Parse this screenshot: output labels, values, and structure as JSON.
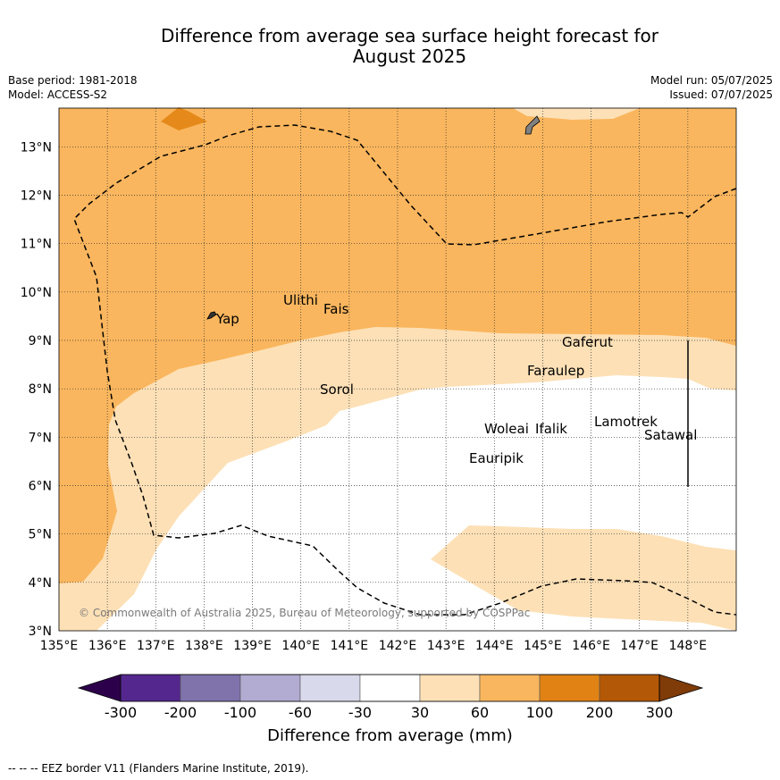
{
  "title": {
    "line1": "Difference from average sea surface height forecast for",
    "line2": "August 2025"
  },
  "meta": {
    "base_period": "Base period: 1981-2018",
    "model": "Model: ACCESS-S2",
    "model_run": "Model run: 05/07/2025",
    "issued": "Issued: 07/07/2025"
  },
  "map": {
    "lon_range": [
      135,
      149
    ],
    "lat_range": [
      3,
      13.8
    ],
    "grid": true,
    "lon_ticks": [
      "135°E",
      "136°E",
      "137°E",
      "138°E",
      "139°E",
      "140°E",
      "141°E",
      "142°E",
      "143°E",
      "144°E",
      "145°E",
      "146°E",
      "147°E",
      "148°E"
    ],
    "lat_ticks": [
      "3°N",
      "4°N",
      "5°N",
      "6°N",
      "7°N",
      "8°N",
      "9°N",
      "10°N",
      "11°N",
      "12°N",
      "13°N"
    ],
    "places": [
      {
        "name": "Yap"
      },
      {
        "name": "Ulithi"
      },
      {
        "name": "Fais"
      },
      {
        "name": "Sorol"
      },
      {
        "name": "Gaferut"
      },
      {
        "name": "Faraulep"
      },
      {
        "name": "Woleai"
      },
      {
        "name": "Ifalik"
      },
      {
        "name": "Lamotrek"
      },
      {
        "name": "Satawal"
      },
      {
        "name": "Eauripik"
      }
    ],
    "copyright": "© Commonwealth of Australia 2025, Bureau of Meteorology, supported by COSPPac",
    "colors": {
      "band_30_60": "#fde0b6",
      "band_60_100": "#fab65e",
      "band_100_200": "#e58a1a",
      "land": "#808080"
    }
  },
  "colorbar": {
    "labels": [
      "-300",
      "-200",
      "-100",
      "-60",
      "-30",
      "30",
      "60",
      "100",
      "200",
      "300"
    ],
    "colors": [
      "#54278f",
      "#8073ac",
      "#b2abd2",
      "#d8daeb",
      "#ffffff",
      "#fde0b6",
      "#fab65e",
      "#e08214",
      "#b35806"
    ],
    "under_color": "#2d004b",
    "over_color": "#7f3b08",
    "title": "Difference from average (mm)"
  },
  "footnote": "--  --  -- EEZ border V11 (Flanders Marine Institute, 2019)."
}
